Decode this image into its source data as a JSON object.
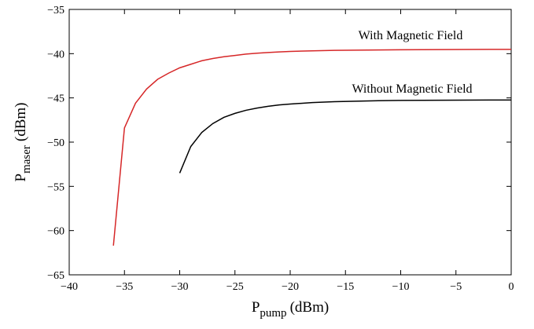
{
  "chart_data": {
    "type": "line",
    "title": "",
    "xlabel": {
      "main": "P",
      "sub": "pump",
      "unit": "(dBm)"
    },
    "ylabel": {
      "main": "P",
      "sub": "maser",
      "unit": "(dBm)"
    },
    "xlim": [
      -40,
      0
    ],
    "ylim": [
      -65,
      -35
    ],
    "xticks": [
      -40,
      -35,
      -30,
      -25,
      -20,
      -15,
      -10,
      -5,
      0
    ],
    "yticks": [
      -65,
      -60,
      -55,
      -50,
      -45,
      -40,
      -35
    ],
    "xtick_labels": [
      "−40",
      "−35",
      "−30",
      "−25",
      "−20",
      "−15",
      "−10",
      "−5",
      "0"
    ],
    "ytick_labels": [
      "−65",
      "−60",
      "−55",
      "−50",
      "−45",
      "−40",
      "−35"
    ],
    "grid": false,
    "series": [
      {
        "name": "With Magnetic Field",
        "color": "#d62728",
        "x": [
          -36,
          -35,
          -34,
          -33,
          -32,
          -31,
          -30,
          -29,
          -28,
          -27,
          -26,
          -25,
          -24,
          -23,
          -22,
          -21,
          -20,
          -18,
          -16,
          -14,
          -12,
          -10,
          -8,
          -6,
          -4,
          -2,
          0
        ],
        "y": [
          -61.7,
          -48.4,
          -45.6,
          -44.0,
          -42.9,
          -42.2,
          -41.6,
          -41.2,
          -40.8,
          -40.55,
          -40.35,
          -40.2,
          -40.05,
          -39.95,
          -39.87,
          -39.8,
          -39.75,
          -39.68,
          -39.63,
          -39.6,
          -39.58,
          -39.56,
          -39.55,
          -39.54,
          -39.53,
          -39.52,
          -39.52
        ]
      },
      {
        "name": "Without Magnetic Field",
        "color": "#000000",
        "x": [
          -30,
          -29,
          -28,
          -27,
          -26,
          -25,
          -24,
          -23,
          -22,
          -21,
          -20,
          -18,
          -16,
          -14,
          -12,
          -10,
          -8,
          -6,
          -4,
          -2,
          0
        ],
        "y": [
          -53.5,
          -50.5,
          -48.9,
          -47.9,
          -47.2,
          -46.75,
          -46.4,
          -46.15,
          -45.95,
          -45.8,
          -45.7,
          -45.53,
          -45.43,
          -45.37,
          -45.32,
          -45.29,
          -45.27,
          -45.26,
          -45.25,
          -45.24,
          -45.24
        ]
      }
    ],
    "annotations": [
      {
        "text": "With Magnetic Field",
        "series": 0
      },
      {
        "text": "Without Magnetic Field",
        "series": 1
      }
    ]
  }
}
